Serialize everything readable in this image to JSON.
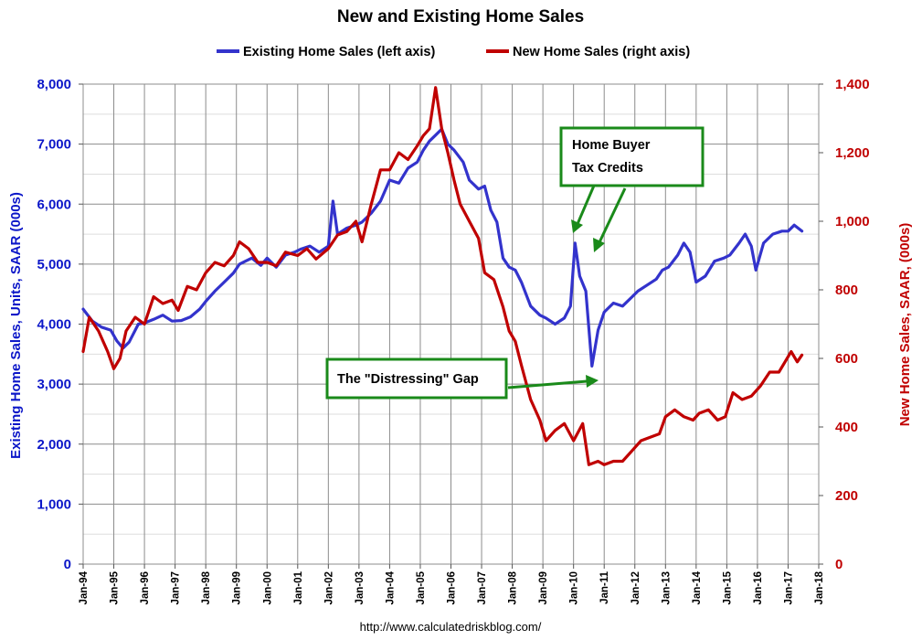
{
  "chart_data": {
    "type": "line",
    "title": "New and Existing Home Sales",
    "source": "http://www.calculatedriskblog.com/",
    "x_ticks": [
      "Jan-94",
      "Jan-95",
      "Jan-96",
      "Jan-97",
      "Jan-98",
      "Jan-99",
      "Jan-00",
      "Jan-01",
      "Jan-02",
      "Jan-03",
      "Jan-04",
      "Jan-05",
      "Jan-06",
      "Jan-07",
      "Jan-08",
      "Jan-09",
      "Jan-10",
      "Jan-11",
      "Jan-12",
      "Jan-13",
      "Jan-14",
      "Jan-15",
      "Jan-16",
      "Jan-17",
      "Jan-18"
    ],
    "xlim": [
      1994.0,
      2018.0
    ],
    "ylabel_left": "Existing Home Sales, Units, SAAR (000s)",
    "ylabel_right": "New Home Sales, SAAR, (000s)",
    "ylim_left": [
      0,
      8000
    ],
    "ylim_right": [
      0,
      1400
    ],
    "yticks_left": [
      "0",
      "1,000",
      "2,000",
      "3,000",
      "4,000",
      "5,000",
      "6,000",
      "7,000",
      "8,000"
    ],
    "yticks_right": [
      "0",
      "200",
      "400",
      "600",
      "800",
      "1,000",
      "1,200",
      "1,400"
    ],
    "grid": true,
    "legend_position": "top",
    "series": [
      {
        "name": "Existing Home Sales (left axis)",
        "axis": "left",
        "color": "#3333cc",
        "points": [
          [
            1994.0,
            4250
          ],
          [
            1994.3,
            4050
          ],
          [
            1994.6,
            3950
          ],
          [
            1994.9,
            3900
          ],
          [
            1995.1,
            3720
          ],
          [
            1995.3,
            3600
          ],
          [
            1995.5,
            3700
          ],
          [
            1995.8,
            4000
          ],
          [
            1996.0,
            4020
          ],
          [
            1996.3,
            4080
          ],
          [
            1996.6,
            4150
          ],
          [
            1996.9,
            4050
          ],
          [
            1997.2,
            4060
          ],
          [
            1997.5,
            4120
          ],
          [
            1997.8,
            4250
          ],
          [
            1998.0,
            4380
          ],
          [
            1998.3,
            4550
          ],
          [
            1998.6,
            4700
          ],
          [
            1998.9,
            4850
          ],
          [
            1999.1,
            5000
          ],
          [
            1999.3,
            5050
          ],
          [
            1999.5,
            5100
          ],
          [
            1999.8,
            4980
          ],
          [
            2000.0,
            5100
          ],
          [
            2000.3,
            4950
          ],
          [
            2000.6,
            5150
          ],
          [
            2000.9,
            5200
          ],
          [
            2001.1,
            5250
          ],
          [
            2001.4,
            5300
          ],
          [
            2001.7,
            5200
          ],
          [
            2002.0,
            5300
          ],
          [
            2002.15,
            6050
          ],
          [
            2002.3,
            5500
          ],
          [
            2002.6,
            5600
          ],
          [
            2002.9,
            5650
          ],
          [
            2003.1,
            5700
          ],
          [
            2003.4,
            5850
          ],
          [
            2003.7,
            6050
          ],
          [
            2004.0,
            6400
          ],
          [
            2004.3,
            6350
          ],
          [
            2004.6,
            6600
          ],
          [
            2004.9,
            6700
          ],
          [
            2005.1,
            6900
          ],
          [
            2005.3,
            7050
          ],
          [
            2005.5,
            7150
          ],
          [
            2005.7,
            7250
          ],
          [
            2005.9,
            7000
          ],
          [
            2006.1,
            6900
          ],
          [
            2006.4,
            6700
          ],
          [
            2006.6,
            6400
          ],
          [
            2006.9,
            6250
          ],
          [
            2007.1,
            6300
          ],
          [
            2007.3,
            5900
          ],
          [
            2007.5,
            5700
          ],
          [
            2007.7,
            5100
          ],
          [
            2007.9,
            4950
          ],
          [
            2008.1,
            4900
          ],
          [
            2008.3,
            4700
          ],
          [
            2008.6,
            4300
          ],
          [
            2008.9,
            4150
          ],
          [
            2009.1,
            4100
          ],
          [
            2009.4,
            4000
          ],
          [
            2009.7,
            4100
          ],
          [
            2009.9,
            4300
          ],
          [
            2010.05,
            5350
          ],
          [
            2010.2,
            4800
          ],
          [
            2010.4,
            4550
          ],
          [
            2010.6,
            3300
          ],
          [
            2010.8,
            3900
          ],
          [
            2011.0,
            4200
          ],
          [
            2011.3,
            4350
          ],
          [
            2011.6,
            4300
          ],
          [
            2011.9,
            4450
          ],
          [
            2012.1,
            4550
          ],
          [
            2012.4,
            4650
          ],
          [
            2012.7,
            4750
          ],
          [
            2012.9,
            4900
          ],
          [
            2013.1,
            4950
          ],
          [
            2013.4,
            5150
          ],
          [
            2013.6,
            5350
          ],
          [
            2013.8,
            5200
          ],
          [
            2014.0,
            4700
          ],
          [
            2014.3,
            4800
          ],
          [
            2014.6,
            5050
          ],
          [
            2014.9,
            5100
          ],
          [
            2015.1,
            5150
          ],
          [
            2015.4,
            5350
          ],
          [
            2015.6,
            5500
          ],
          [
            2015.8,
            5300
          ],
          [
            2015.95,
            4900
          ],
          [
            2016.2,
            5350
          ],
          [
            2016.5,
            5500
          ],
          [
            2016.8,
            5550
          ],
          [
            2017.0,
            5550
          ],
          [
            2017.2,
            5650
          ],
          [
            2017.45,
            5550
          ]
        ]
      },
      {
        "name": "New Home Sales (right axis)",
        "axis": "right",
        "color": "#c00000",
        "points": [
          [
            1994.0,
            620
          ],
          [
            1994.2,
            720
          ],
          [
            1994.5,
            680
          ],
          [
            1994.8,
            620
          ],
          [
            1995.0,
            570
          ],
          [
            1995.2,
            600
          ],
          [
            1995.4,
            680
          ],
          [
            1995.7,
            720
          ],
          [
            1996.0,
            700
          ],
          [
            1996.3,
            780
          ],
          [
            1996.6,
            760
          ],
          [
            1996.9,
            770
          ],
          [
            1997.1,
            740
          ],
          [
            1997.4,
            810
          ],
          [
            1997.7,
            800
          ],
          [
            1998.0,
            850
          ],
          [
            1998.3,
            880
          ],
          [
            1998.6,
            870
          ],
          [
            1998.9,
            900
          ],
          [
            1999.1,
            940
          ],
          [
            1999.4,
            920
          ],
          [
            1999.7,
            880
          ],
          [
            2000.0,
            880
          ],
          [
            2000.3,
            870
          ],
          [
            2000.6,
            910
          ],
          [
            2001.0,
            900
          ],
          [
            2001.3,
            920
          ],
          [
            2001.6,
            890
          ],
          [
            2002.0,
            920
          ],
          [
            2002.3,
            960
          ],
          [
            2002.6,
            970
          ],
          [
            2002.9,
            1000
          ],
          [
            2003.1,
            940
          ],
          [
            2003.4,
            1050
          ],
          [
            2003.7,
            1150
          ],
          [
            2004.0,
            1150
          ],
          [
            2004.3,
            1200
          ],
          [
            2004.6,
            1180
          ],
          [
            2004.9,
            1220
          ],
          [
            2005.1,
            1250
          ],
          [
            2005.3,
            1270
          ],
          [
            2005.5,
            1390
          ],
          [
            2005.7,
            1270
          ],
          [
            2005.9,
            1200
          ],
          [
            2006.1,
            1120
          ],
          [
            2006.3,
            1050
          ],
          [
            2006.6,
            1000
          ],
          [
            2006.9,
            950
          ],
          [
            2007.1,
            850
          ],
          [
            2007.4,
            830
          ],
          [
            2007.7,
            750
          ],
          [
            2007.9,
            680
          ],
          [
            2008.1,
            650
          ],
          [
            2008.3,
            580
          ],
          [
            2008.6,
            480
          ],
          [
            2008.9,
            420
          ],
          [
            2009.1,
            360
          ],
          [
            2009.4,
            390
          ],
          [
            2009.7,
            410
          ],
          [
            2010.0,
            360
          ],
          [
            2010.3,
            410
          ],
          [
            2010.5,
            290
          ],
          [
            2010.8,
            300
          ],
          [
            2011.0,
            290
          ],
          [
            2011.3,
            300
          ],
          [
            2011.6,
            300
          ],
          [
            2011.9,
            330
          ],
          [
            2012.2,
            360
          ],
          [
            2012.5,
            370
          ],
          [
            2012.8,
            380
          ],
          [
            2013.0,
            430
          ],
          [
            2013.3,
            450
          ],
          [
            2013.6,
            430
          ],
          [
            2013.9,
            420
          ],
          [
            2014.1,
            440
          ],
          [
            2014.4,
            450
          ],
          [
            2014.7,
            420
          ],
          [
            2014.95,
            430
          ],
          [
            2015.2,
            500
          ],
          [
            2015.5,
            480
          ],
          [
            2015.8,
            490
          ],
          [
            2016.1,
            520
          ],
          [
            2016.4,
            560
          ],
          [
            2016.7,
            560
          ],
          [
            2016.9,
            590
          ],
          [
            2017.1,
            620
          ],
          [
            2017.3,
            590
          ],
          [
            2017.45,
            610
          ]
        ]
      }
    ],
    "annotations": [
      {
        "id": "tax-credits",
        "text_lines": [
          "Home Buyer",
          "Tax Credits"
        ]
      },
      {
        "id": "gap",
        "text_lines": [
          "The \"Distressing\" Gap"
        ]
      }
    ]
  }
}
